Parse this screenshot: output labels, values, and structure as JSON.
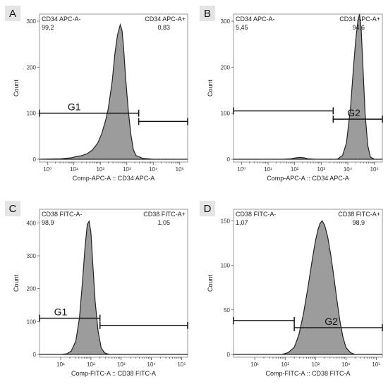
{
  "chart_data": [
    {
      "type": "histogram",
      "panel": "A",
      "pos_tl": "CD34 APC-A-",
      "pos_tr": "CD34 APC-A+",
      "val_tl": "99,2",
      "val_tr": "0,83",
      "ylabel": "Count",
      "xlabel": "Comp-APC-A :: CD34 APC-A",
      "ylim": [
        0,
        300
      ],
      "yticks": [
        "0",
        "100",
        "200",
        "300"
      ],
      "xlim": [
        -0.3,
        5.3
      ],
      "xticks": [
        "10⁰",
        "10¹",
        "10²",
        "10³",
        "10⁴",
        "10⁵"
      ],
      "gates": [
        {
          "label": "G1",
          "x1": -0.3,
          "x2": 3.45,
          "y": 100
        },
        {
          "label": "",
          "x1": 3.45,
          "x2": 5.3,
          "y": 82
        }
      ],
      "curve": [
        [
          -0.3,
          0
        ],
        [
          0.5,
          1
        ],
        [
          0.9,
          3
        ],
        [
          1.1,
          6
        ],
        [
          1.3,
          8
        ],
        [
          1.5,
          12
        ],
        [
          1.7,
          20
        ],
        [
          1.9,
          35
        ],
        [
          2.05,
          55
        ],
        [
          2.2,
          85
        ],
        [
          2.3,
          110
        ],
        [
          2.45,
          170
        ],
        [
          2.55,
          230
        ],
        [
          2.65,
          270
        ],
        [
          2.75,
          292
        ],
        [
          2.82,
          280
        ],
        [
          2.88,
          240
        ],
        [
          2.95,
          180
        ],
        [
          3.05,
          110
        ],
        [
          3.15,
          55
        ],
        [
          3.25,
          20
        ],
        [
          3.35,
          8
        ],
        [
          3.6,
          2
        ],
        [
          4.0,
          0
        ],
        [
          5.3,
          0
        ]
      ]
    },
    {
      "type": "histogram",
      "panel": "B",
      "pos_tl": "CD34 APC-A-",
      "pos_tr": "CD34 APC-A+",
      "val_tl": "5,45",
      "val_tr": "94,6",
      "ylabel": "Count",
      "xlabel": "Comp-APC-A :: CD34 APC-A",
      "ylim": [
        0,
        300
      ],
      "yticks": [
        "0",
        "100",
        "200",
        "300"
      ],
      "xlim": [
        -0.3,
        5.3
      ],
      "xticks": [
        "10⁰",
        "10¹",
        "10²",
        "10³",
        "10⁴",
        "10⁵"
      ],
      "gates": [
        {
          "label": "",
          "x1": -0.3,
          "x2": 3.45,
          "y": 105
        },
        {
          "label": "G2",
          "x1": 3.45,
          "x2": 5.3,
          "y": 87
        }
      ],
      "curve": [
        [
          -0.3,
          0
        ],
        [
          1.6,
          0
        ],
        [
          1.85,
          1
        ],
        [
          2.05,
          3
        ],
        [
          2.2,
          4
        ],
        [
          2.35,
          3
        ],
        [
          2.5,
          1
        ],
        [
          2.8,
          0
        ],
        [
          3.6,
          0
        ],
        [
          3.8,
          8
        ],
        [
          3.95,
          35
        ],
        [
          4.1,
          110
        ],
        [
          4.2,
          190
        ],
        [
          4.3,
          260
        ],
        [
          4.38,
          300
        ],
        [
          4.44,
          315
        ],
        [
          4.5,
          285
        ],
        [
          4.57,
          200
        ],
        [
          4.65,
          100
        ],
        [
          4.75,
          30
        ],
        [
          4.85,
          5
        ],
        [
          5.0,
          0
        ],
        [
          5.3,
          0
        ]
      ]
    },
    {
      "type": "histogram",
      "panel": "C",
      "pos_tl": "CD38 FITC-A-",
      "pos_tr": "CD38 FITC-A+",
      "val_tl": "98,9",
      "val_tr": "1,05",
      "ylabel": "Count",
      "xlabel": "Comp-FITC-A :: CD38 FITC-A",
      "ylim": [
        0,
        420
      ],
      "yticks": [
        "0",
        "100",
        "200",
        "300",
        "400"
      ],
      "xlim": [
        0.3,
        5.2
      ],
      "xticks": [
        "10¹",
        "10²",
        "10³",
        "10⁴",
        "10⁵"
      ],
      "gates": [
        {
          "label": "G1",
          "x1": 0.3,
          "x2": 2.3,
          "y": 110
        },
        {
          "label": "",
          "x1": 2.3,
          "x2": 5.2,
          "y": 88
        }
      ],
      "curve": [
        [
          0.3,
          0
        ],
        [
          1.0,
          0
        ],
        [
          1.2,
          2
        ],
        [
          1.35,
          10
        ],
        [
          1.5,
          40
        ],
        [
          1.62,
          110
        ],
        [
          1.72,
          220
        ],
        [
          1.8,
          320
        ],
        [
          1.88,
          395
        ],
        [
          1.94,
          405
        ],
        [
          2.0,
          370
        ],
        [
          2.06,
          280
        ],
        [
          2.14,
          160
        ],
        [
          2.24,
          70
        ],
        [
          2.34,
          20
        ],
        [
          2.45,
          5
        ],
        [
          2.6,
          0
        ],
        [
          5.2,
          0
        ]
      ]
    },
    {
      "type": "histogram",
      "panel": "D",
      "pos_tl": "CD38 FITC-A-",
      "pos_tr": "CD38 FITC-A+",
      "val_tl": "1,07",
      "val_tr": "98,9",
      "ylabel": "Count",
      "xlabel": "Comp-FITC-A :: CD38 FITC-A",
      "ylim": [
        0,
        155
      ],
      "yticks": [
        "0",
        "50",
        "100",
        "150"
      ],
      "xlim": [
        0.3,
        5.2
      ],
      "xticks": [
        "10¹",
        "10²",
        "10³",
        "10⁴",
        "10⁵"
      ],
      "gates": [
        {
          "label": "",
          "x1": 0.3,
          "x2": 2.3,
          "y": 38
        },
        {
          "label": "G2",
          "x1": 2.3,
          "x2": 5.2,
          "y": 30
        }
      ],
      "curve": [
        [
          0.3,
          0
        ],
        [
          1.9,
          0
        ],
        [
          2.1,
          2
        ],
        [
          2.3,
          8
        ],
        [
          2.45,
          22
        ],
        [
          2.6,
          45
        ],
        [
          2.75,
          75
        ],
        [
          2.9,
          108
        ],
        [
          3.0,
          128
        ],
        [
          3.08,
          140
        ],
        [
          3.15,
          147
        ],
        [
          3.22,
          150
        ],
        [
          3.3,
          145
        ],
        [
          3.4,
          132
        ],
        [
          3.5,
          112
        ],
        [
          3.6,
          88
        ],
        [
          3.7,
          62
        ],
        [
          3.8,
          38
        ],
        [
          3.9,
          20
        ],
        [
          4.0,
          8
        ],
        [
          4.15,
          2
        ],
        [
          4.3,
          0
        ],
        [
          5.2,
          0
        ]
      ]
    }
  ]
}
